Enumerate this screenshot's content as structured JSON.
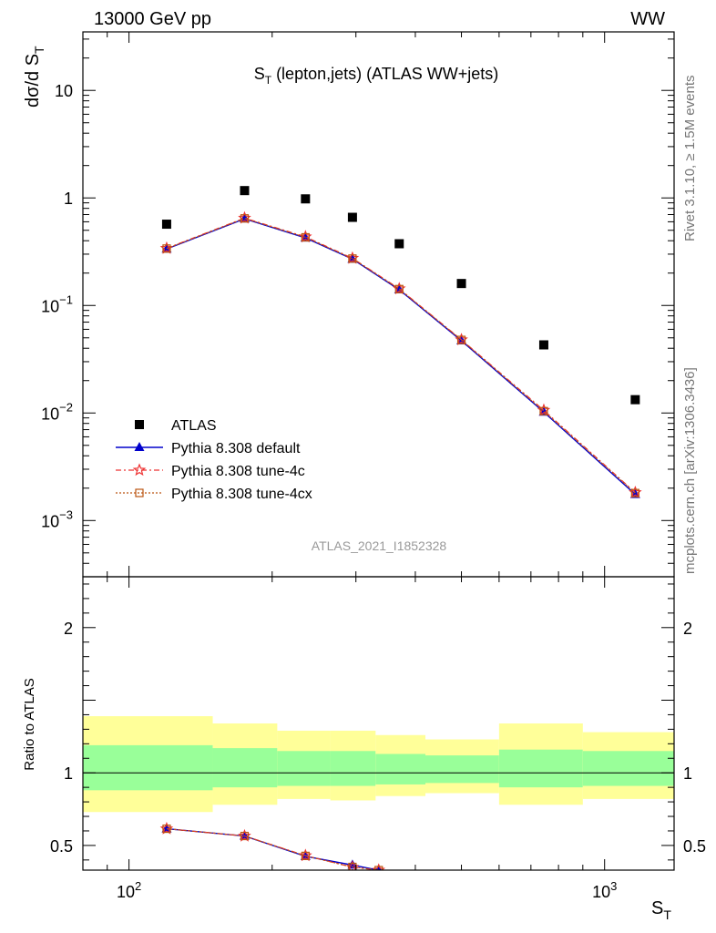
{
  "header": {
    "left": "13000 GeV pp",
    "right": "WW"
  },
  "side_labels": {
    "rivet": "Rivet 3.1.10, ≥ 1.5M events",
    "mcplots": "mcplots.cern.ch [arXiv:1306.3436]"
  },
  "colors": {
    "atlas": "#000000",
    "default": "#0000cc",
    "tune4c": "#ee3333",
    "tune4cx": "#bb5511",
    "band_inner": "#99ff99",
    "band_outer": "#ffff99"
  },
  "chart_data": [
    {
      "type": "line",
      "panel": "main",
      "title_main": "S",
      "title_sub": "T",
      "title_rest": " (lepton,jets) (ATLAS WW+jets)",
      "ylabel": "dσ/d S",
      "ylabel_sub": "T",
      "yscale": "log",
      "xscale": "log",
      "xlim": [
        80,
        1400
      ],
      "ylim": [
        0.0003,
        35
      ],
      "y_tick_labels": [
        {
          "value": 10,
          "label": "10"
        },
        {
          "value": 1,
          "label": "1"
        },
        {
          "value": 0.1,
          "label": "10",
          "exp": "−1"
        },
        {
          "value": 0.01,
          "label": "10",
          "exp": "−2"
        },
        {
          "value": 0.001,
          "label": "10",
          "exp": "−3"
        }
      ],
      "watermark": "ATLAS_2021_I1852328",
      "legend_position": "lower-left",
      "series": [
        {
          "name": "ATLAS",
          "style": "square",
          "x": [
            120,
            175,
            235,
            295,
            370,
            500,
            745,
            1160
          ],
          "y": [
            0.57,
            1.17,
            0.98,
            0.66,
            0.375,
            0.16,
            0.043,
            0.0133
          ]
        },
        {
          "name": "Pythia 8.308 default",
          "style": "triangle",
          "x": [
            120,
            175,
            235,
            295,
            370,
            500,
            745,
            1160
          ],
          "y": [
            0.335,
            0.64,
            0.425,
            0.27,
            0.14,
            0.047,
            0.0102,
            0.00175
          ]
        },
        {
          "name": "Pythia 8.308 tune-4c",
          "style": "star",
          "x": [
            120,
            175,
            235,
            295,
            370,
            500,
            745,
            1160
          ],
          "y": [
            0.34,
            0.65,
            0.435,
            0.275,
            0.143,
            0.048,
            0.0106,
            0.00182
          ]
        },
        {
          "name": "Pythia 8.308 tune-4cx",
          "style": "open-square",
          "x": [
            120,
            175,
            235,
            295,
            370,
            500,
            745,
            1160
          ],
          "y": [
            0.338,
            0.645,
            0.43,
            0.273,
            0.142,
            0.0478,
            0.0104,
            0.0018
          ]
        }
      ]
    },
    {
      "type": "line",
      "panel": "ratio",
      "ylabel": "Ratio to ATLAS",
      "xlabel": "S",
      "xlabel_sub": "T",
      "xscale": "log",
      "xlim": [
        80,
        1400
      ],
      "ylim": [
        0.33,
        2.35
      ],
      "y_tick_labels": [
        {
          "value": 2,
          "label": "2"
        },
        {
          "value": 1,
          "label": "1"
        },
        {
          "value": 0.5,
          "label": "0.5"
        }
      ],
      "x_tick_labels": [
        {
          "value": 100,
          "label": "10",
          "exp": "2"
        },
        {
          "value": 1000,
          "label": "10",
          "exp": "3"
        }
      ],
      "bands": {
        "edges": [
          80,
          150,
          205,
          265,
          330,
          420,
          600,
          900,
          1400
        ],
        "inner_lo": [
          0.88,
          0.9,
          0.91,
          0.91,
          0.92,
          0.93,
          0.9,
          0.91
        ],
        "inner_hi": [
          1.19,
          1.17,
          1.15,
          1.15,
          1.13,
          1.12,
          1.16,
          1.15
        ],
        "outer_lo": [
          0.73,
          0.78,
          0.82,
          0.81,
          0.84,
          0.86,
          0.78,
          0.82
        ],
        "outer_hi": [
          1.39,
          1.34,
          1.29,
          1.29,
          1.26,
          1.23,
          1.34,
          1.28
        ]
      },
      "series": [
        {
          "name": "Pythia 8.308 default",
          "x": [
            120,
            175,
            235,
            295,
            335
          ],
          "y": [
            0.615,
            0.565,
            0.425,
            0.365,
            0.33
          ]
        },
        {
          "name": "Pythia 8.308 tune-4c",
          "x": [
            120,
            175,
            235,
            295,
            335
          ],
          "y": [
            0.615,
            0.565,
            0.43,
            0.35,
            0.33
          ]
        },
        {
          "name": "Pythia 8.308 tune-4cx",
          "x": [
            120,
            175,
            235,
            295,
            335
          ],
          "y": [
            0.615,
            0.565,
            0.428,
            0.352,
            0.33
          ]
        }
      ]
    }
  ]
}
